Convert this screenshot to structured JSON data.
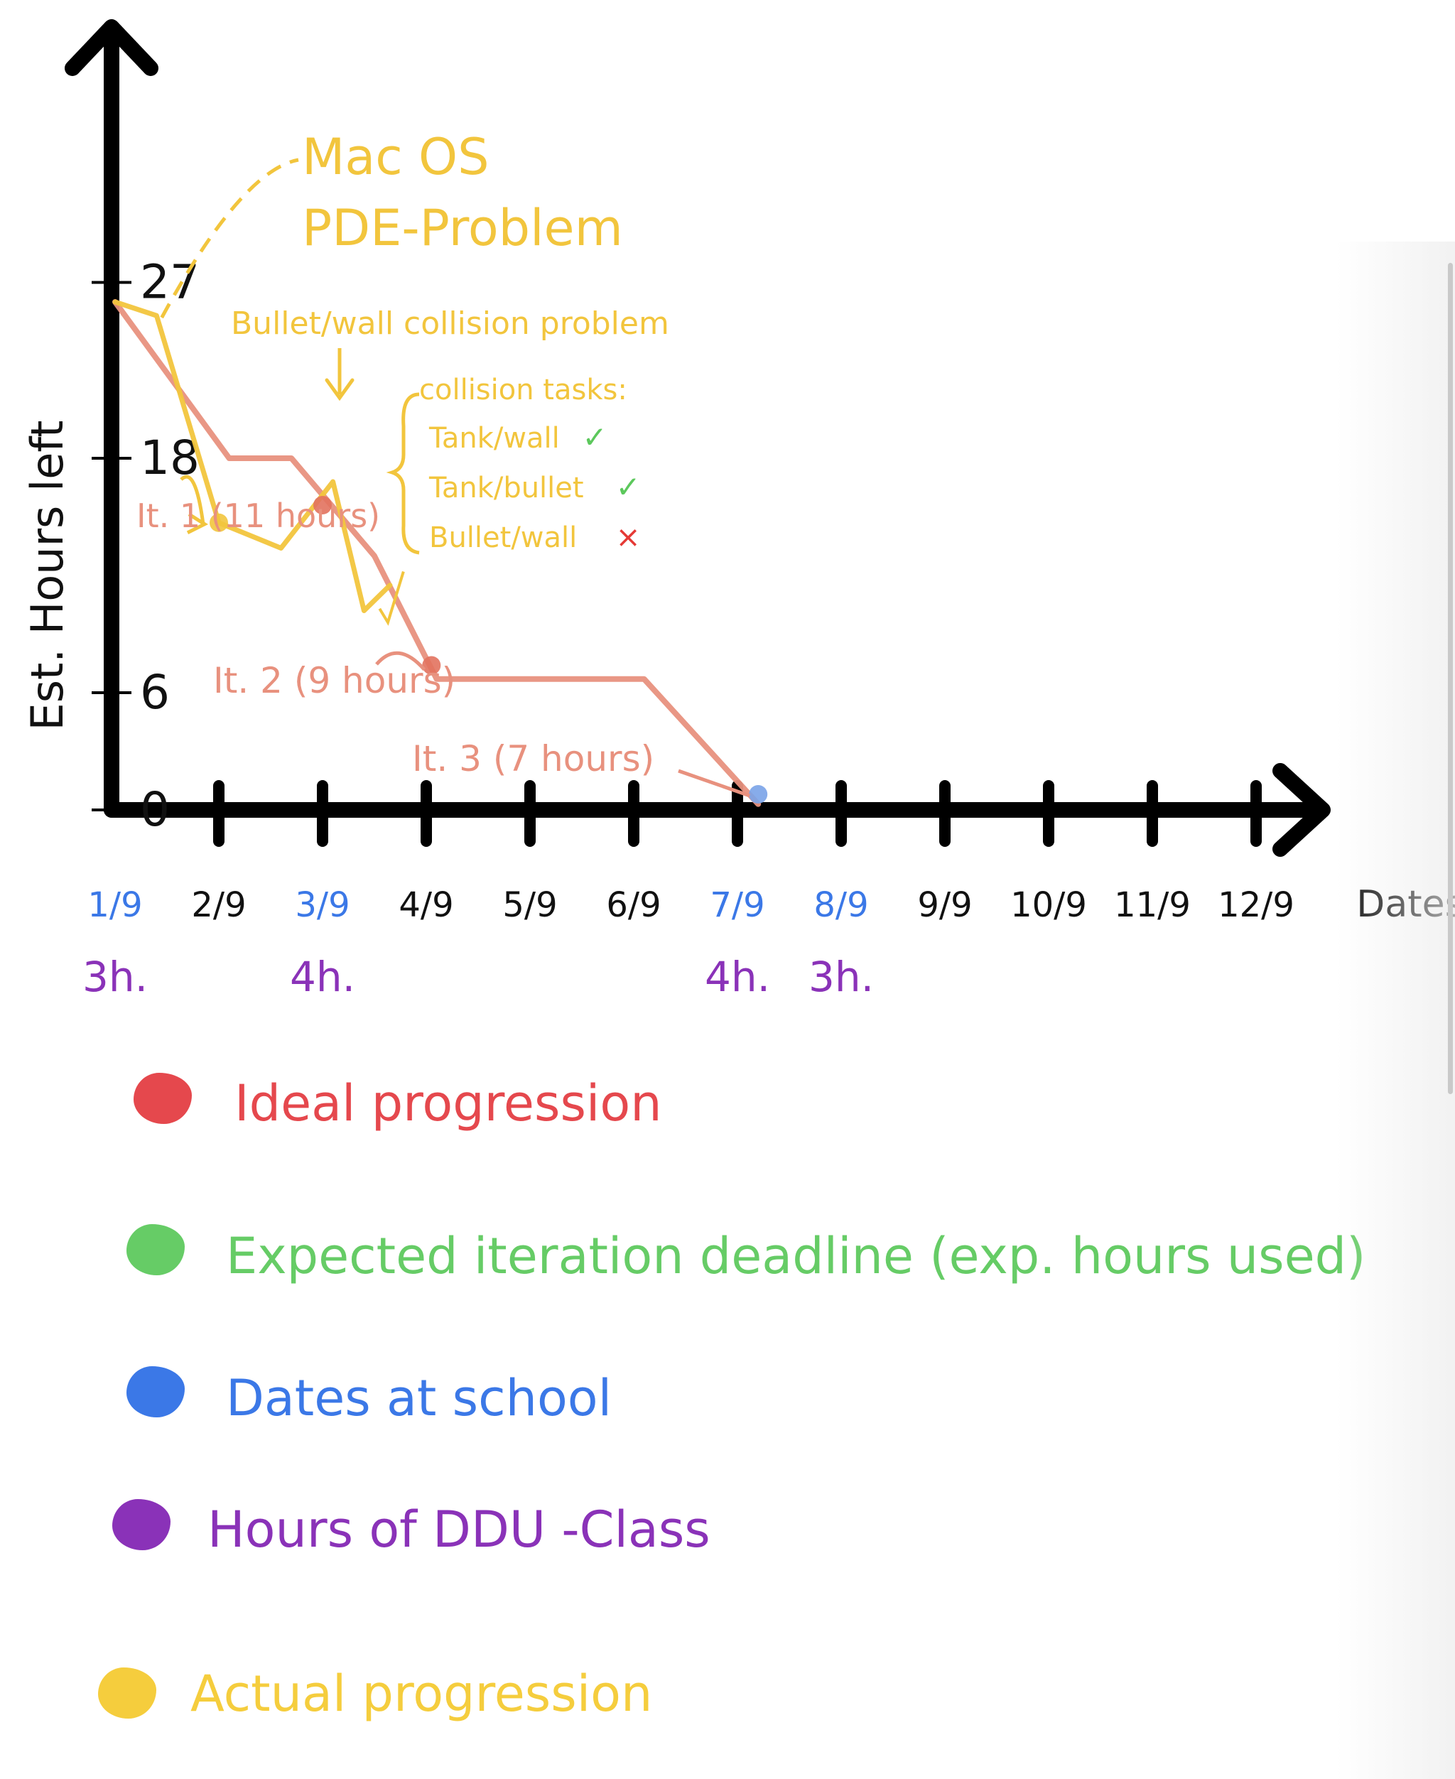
{
  "chart_data": {
    "type": "line",
    "ylabel": "Est. Hours left",
    "xlabel": "Dates",
    "categories": [
      "1/9",
      "2/9",
      "3/9",
      "4/9",
      "5/9",
      "6/9",
      "7/9",
      "8/9",
      "9/9",
      "10/9",
      "11/9",
      "12/9"
    ],
    "x_tick_colors": [
      "#3b78e7",
      "#111111",
      "#3b78e7",
      "#111111",
      "#111111",
      "#111111",
      "#3b78e7",
      "#3b78e7",
      "#111111",
      "#111111",
      "#111111",
      "#111111"
    ],
    "yticks": [
      {
        "value": 0,
        "label": "0"
      },
      {
        "value": 6,
        "label": "6"
      },
      {
        "value": 18,
        "label": "18"
      },
      {
        "value": 27,
        "label": "27"
      }
    ],
    "ylim": [
      0,
      32
    ],
    "xlim": [
      1,
      13
    ],
    "series": [
      {
        "key": "ideal",
        "color": "#e8917e",
        "points": [
          [
            1.0,
            26.0
          ],
          [
            2.1,
            18.0
          ],
          [
            2.7,
            18.0
          ],
          [
            3.5,
            13.0
          ],
          [
            4.1,
            6.7
          ],
          [
            6.1,
            6.7
          ],
          [
            7.2,
            0.3
          ]
        ]
      },
      {
        "key": "actual",
        "color": "#f2c53d",
        "points": [
          [
            1.0,
            26.0
          ],
          [
            1.4,
            25.3
          ],
          [
            2.0,
            14.7
          ],
          [
            2.6,
            13.4
          ],
          [
            3.1,
            16.8
          ],
          [
            3.4,
            10.2
          ],
          [
            3.65,
            11.5
          ]
        ]
      }
    ],
    "milestones": [
      {
        "key": "it1",
        "x": 2.0,
        "y": 14.7,
        "label": "It. 1 (11 hours)",
        "color": "#f2c53d"
      },
      {
        "key": "it1b",
        "x": 3.0,
        "y": 15.6,
        "label": "",
        "color": "#e2725e"
      },
      {
        "key": "it2",
        "x": 4.05,
        "y": 7.4,
        "label": "It. 2 (9 hours)",
        "color": "#e2725e"
      },
      {
        "key": "it3",
        "x": 7.2,
        "y": 0.8,
        "label": "It. 3 (7 hours)",
        "color": "#7aa3e8"
      }
    ],
    "class_hours": [
      {
        "x": 1,
        "label": "3h."
      },
      {
        "x": 3,
        "label": "4h."
      },
      {
        "x": 7,
        "label": "4h."
      },
      {
        "x": 8,
        "label": "3h."
      }
    ],
    "annotations": {
      "macos": [
        "Mac OS",
        "PDE-Problem"
      ],
      "bullet_wall": "Bullet/wall collision problem",
      "collision_title": "collision tasks:",
      "collision_tasks": [
        {
          "text": "Tank/wall",
          "mark": "✓",
          "mark_color": "#5cc85c"
        },
        {
          "text": "Tank/bullet",
          "mark": "✓",
          "mark_color": "#5cc85c"
        },
        {
          "text": "Bullet/wall",
          "mark": "×",
          "mark_color": "#e53935"
        }
      ]
    }
  },
  "legend": [
    {
      "label": "Ideal progression",
      "color": "#e5484d"
    },
    {
      "label": "Expected iteration deadline (exp. hours used)",
      "color": "#66cc66"
    },
    {
      "label": "Dates at school",
      "color": "#3b78e7"
    },
    {
      "label": "Hours of DDU -Class",
      "color": "#8a32b8"
    },
    {
      "label": "Actual progression",
      "color": "#f5cd3d"
    }
  ]
}
